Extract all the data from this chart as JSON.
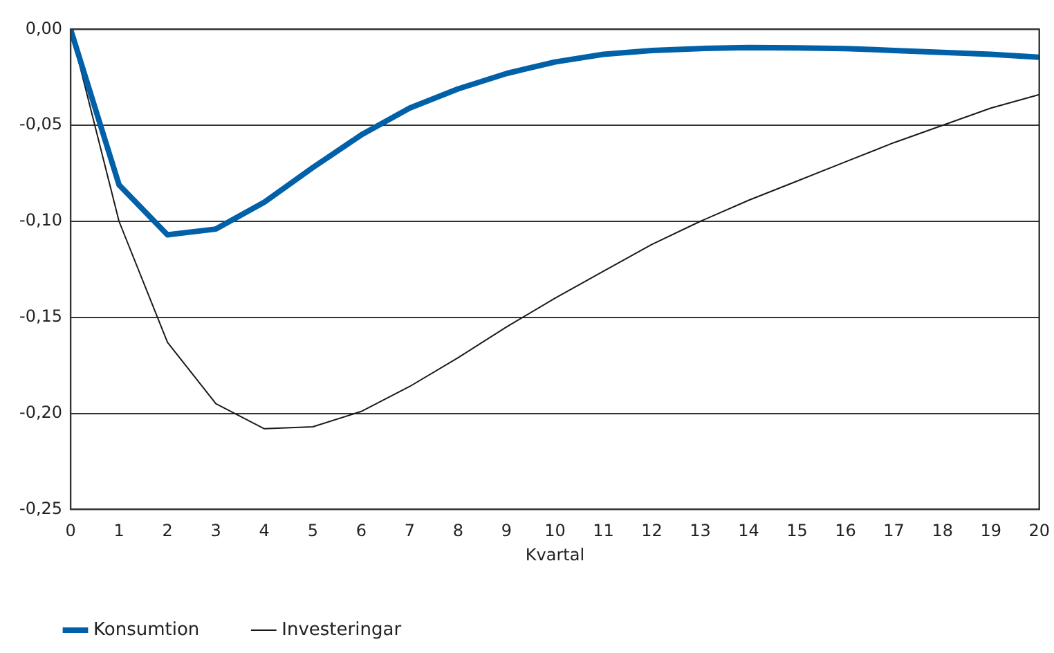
{
  "chart_data": {
    "type": "line",
    "xlabel": "Kvartal",
    "x": [
      0,
      1,
      2,
      3,
      4,
      5,
      6,
      7,
      8,
      9,
      10,
      11,
      12,
      13,
      14,
      15,
      16,
      17,
      18,
      19,
      20
    ],
    "series": [
      {
        "name": "Konsumtion",
        "color": "#0060a8",
        "values": [
          0,
          -0.081,
          -0.107,
          -0.104,
          -0.09,
          -0.072,
          -0.055,
          -0.041,
          -0.031,
          -0.023,
          -0.017,
          -0.013,
          -0.011,
          -0.01,
          -0.0095,
          -0.0097,
          -0.01,
          -0.011,
          -0.012,
          -0.013,
          -0.0145
        ]
      },
      {
        "name": "Investeringar",
        "color": "#1a1a1a",
        "values": [
          0,
          -0.1,
          -0.163,
          -0.195,
          -0.208,
          -0.207,
          -0.199,
          -0.186,
          -0.171,
          -0.155,
          -0.14,
          -0.126,
          -0.112,
          -0.1,
          -0.089,
          -0.079,
          -0.069,
          -0.059,
          -0.05,
          -0.041,
          -0.034
        ]
      }
    ],
    "xlim": [
      0,
      20
    ],
    "xticks": [
      0,
      1,
      2,
      3,
      4,
      5,
      6,
      7,
      8,
      9,
      10,
      11,
      12,
      13,
      14,
      15,
      16,
      17,
      18,
      19,
      20
    ],
    "ylim": [
      -0.25,
      0
    ],
    "yticks": [
      {
        "value": -0.25,
        "label": "-0,25"
      },
      {
        "value": -0.2,
        "label": "-0,20"
      },
      {
        "value": -0.15,
        "label": "-0,15"
      },
      {
        "value": -0.1,
        "label": "-0,10"
      },
      {
        "value": -0.05,
        "label": "-0,05"
      },
      {
        "value": 0,
        "label": "0,00"
      }
    ],
    "grid": "y",
    "legend": "bottom left",
    "marker": "none",
    "line_style": "solid"
  }
}
